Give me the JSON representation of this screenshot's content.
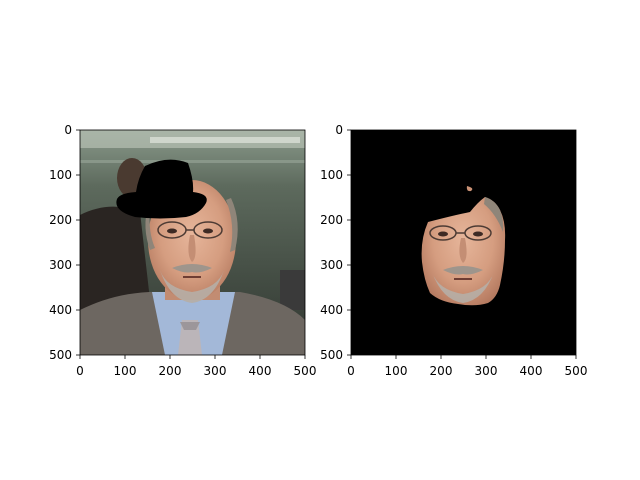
{
  "figure": {
    "background": "#ffffff"
  },
  "chart_data": [
    {
      "type": "image",
      "content": "masked face photo: man with glasses, grey beard, suit and tie; black hat-shaped mask over top of head",
      "xlim": [
        0,
        500
      ],
      "ylim": [
        500,
        0
      ],
      "xticks": [
        "0",
        "100",
        "200",
        "300",
        "400",
        "500"
      ],
      "yticks": [
        "0",
        "100",
        "200",
        "300",
        "400",
        "500"
      ],
      "colors": {
        "background_dark": "#3f463e",
        "ceiling": "#7e8c7f",
        "skin": "#d8a48a",
        "suit": "#6b6660",
        "shirt": "#9fb5d6",
        "tie": "#b9b4b8",
        "mask": "#000000"
      }
    },
    {
      "type": "image",
      "content": "segmented face region isolated on black background",
      "xlim": [
        0,
        500
      ],
      "ylim": [
        500,
        0
      ],
      "xticks": [
        "0",
        "100",
        "200",
        "300",
        "400",
        "500"
      ],
      "yticks": [
        "0",
        "100",
        "200",
        "300",
        "400",
        "500"
      ],
      "colors": {
        "background": "#000000",
        "skin": "#d8a48a"
      }
    }
  ]
}
